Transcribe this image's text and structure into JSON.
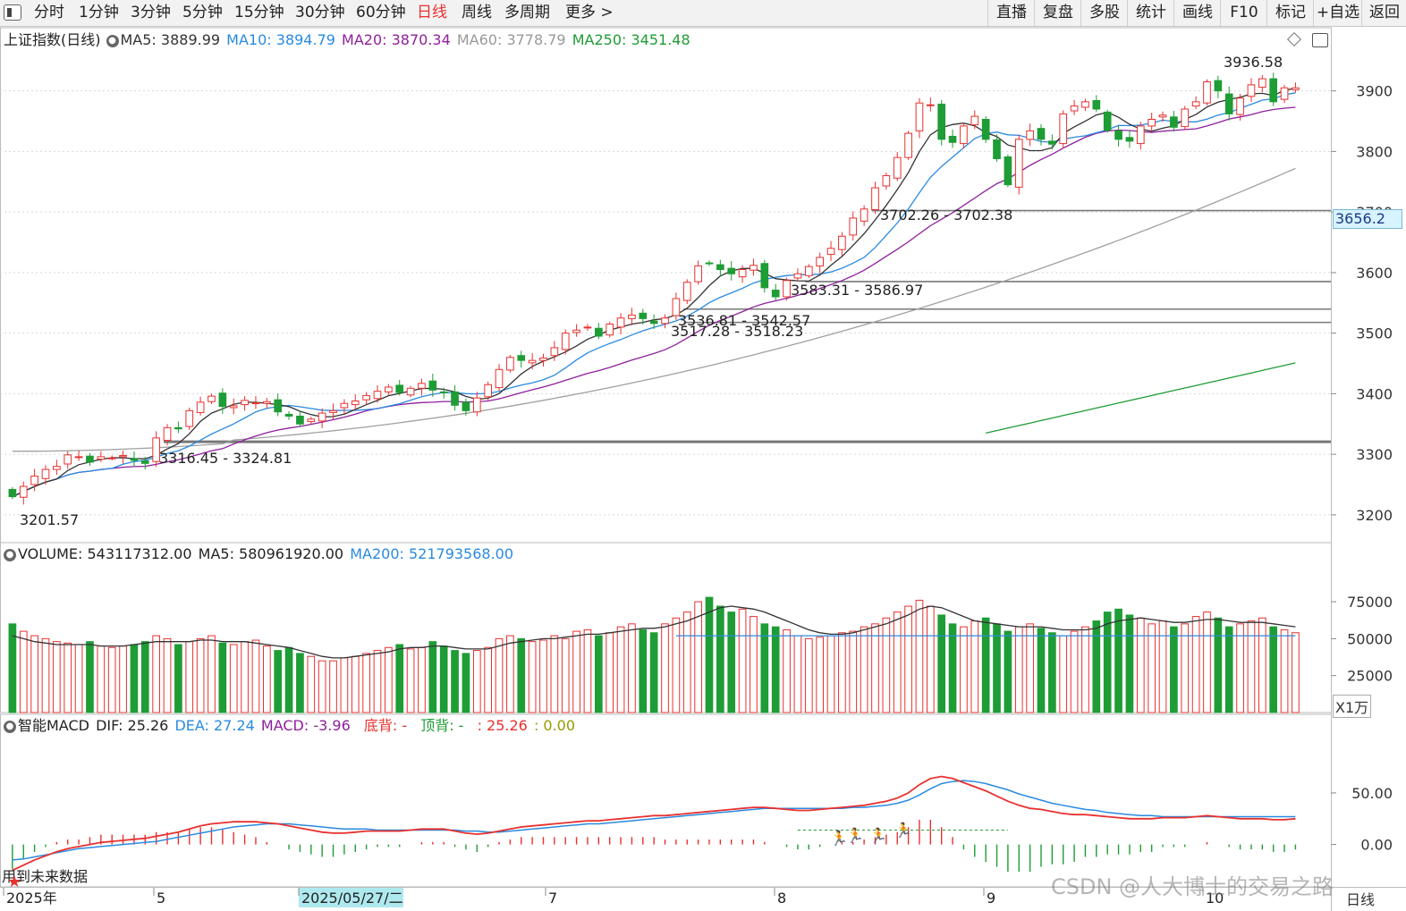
{
  "toolbar": {
    "periods": [
      "分时",
      "1分钟",
      "3分钟",
      "5分钟",
      "15分钟",
      "30分钟",
      "60分钟",
      "日线",
      "周线",
      "多周期",
      "更多 >"
    ],
    "active_period": "日线",
    "right_buttons": [
      "直播",
      "复盘",
      "多股",
      "统计",
      "画线",
      "F10",
      "标记",
      "+自选",
      "返回"
    ]
  },
  "main_info": {
    "title": "上证指数(日线)",
    "ma5": "MA5: 3889.99",
    "ma10": "MA10: 3894.79",
    "ma20": "MA20: 3870.34",
    "ma60": "MA60: 3778.79",
    "ma250": "MA250: 3451.48"
  },
  "volume_info": {
    "label": "VOLUME: 543117312.00",
    "ma5": "MA5: 580961920.00",
    "ma200": "MA200: 521793568.00"
  },
  "macd_info": {
    "label": "智能MACD",
    "dif": "DIF: 25.26",
    "dea": "DEA: 27.24",
    "macd": "MACD: -3.96",
    "bottom": "底背: -",
    "top": "顶背: -",
    "extra": ": 25.26",
    "zero": ": 0.00"
  },
  "annotations": {
    "high": "3936.58",
    "low": "3201.57",
    "gap1": "3702.26 - 3702.38",
    "gap2": "3583.31 - 3586.97",
    "gap3": "3536.81 - 3542.57",
    "gap4": "3517.28 - 3518.23",
    "gap5": "3316.45 - 3324.81",
    "future_note": "用到未来数据"
  },
  "price_tag": "3656.2",
  "volume_unit": "X1万",
  "bottom_right_label": "日线",
  "x_axis": {
    "labels": [
      "2025年",
      "5",
      "2025/05/27/二",
      "7",
      "8",
      "9",
      "10"
    ]
  },
  "watermark": "CSDN @人大博士的交易之路",
  "colors": {
    "up": "#e8312f",
    "down": "#1e9c35",
    "ma5": "#333333",
    "ma10": "#2a8ae0",
    "ma20": "#8e1f9c",
    "ma60": "#a0a0a0",
    "ma250": "#1e9c35",
    "dif": "#e8312f",
    "dea": "#2a8ae0"
  },
  "chart_data": {
    "type": "candlestick",
    "price_axis": {
      "ylim": [
        3160,
        3960
      ],
      "ticks": [
        "3900",
        "3800",
        "3700",
        "3600",
        "3500",
        "3400",
        "3300",
        "3200"
      ]
    },
    "volume_axis": {
      "ticks": [
        "75000",
        "50000",
        "25000"
      ]
    },
    "macd_axis": {
      "ticks": [
        "50.00",
        "0.00"
      ]
    },
    "support_levels": [
      3702.32,
      3585.14,
      3539.69,
      3517.76,
      3320.63
    ],
    "close": [
      3230,
      3247,
      3264,
      3275,
      3280,
      3299,
      3296,
      3287,
      3296,
      3294,
      3298,
      3290,
      3285,
      3327,
      3344,
      3342,
      3372,
      3386,
      3396,
      3379,
      3380,
      3389,
      3385,
      3387,
      3370,
      3363,
      3350,
      3358,
      3368,
      3372,
      3384,
      3388,
      3397,
      3404,
      3411,
      3402,
      3409,
      3417,
      3406,
      3402,
      3381,
      3372,
      3393,
      3415,
      3440,
      3460,
      3455,
      3455,
      3459,
      3476,
      3500,
      3505,
      3510,
      3495,
      3515,
      3525,
      3530,
      3524,
      3516,
      3525,
      3557,
      3584,
      3611,
      3615,
      3605,
      3598,
      3605,
      3612,
      3575,
      3560,
      3587,
      3598,
      3610,
      3625,
      3640,
      3660,
      3690,
      3705,
      3740,
      3760,
      3790,
      3830,
      3880,
      3877,
      3820,
      3815,
      3842,
      3858,
      3820,
      3788,
      3745,
      3820,
      3834,
      3820,
      3812,
      3862,
      3875,
      3882,
      3870,
      3835,
      3820,
      3817,
      3842,
      3853,
      3860,
      3840,
      3870,
      3882,
      3915,
      3900,
      3862,
      3888,
      3910,
      3920,
      3882,
      3905,
      3905
    ],
    "volume": [
      60,
      55,
      52,
      50,
      48,
      47,
      46,
      48,
      45,
      44,
      45,
      46,
      48,
      52,
      50,
      46,
      48,
      50,
      52,
      47,
      46,
      48,
      49,
      45,
      42,
      44,
      40,
      38,
      35,
      35,
      37,
      38,
      40,
      42,
      44,
      46,
      43,
      44,
      48,
      45,
      42,
      40,
      42,
      44,
      50,
      52,
      50,
      48,
      49,
      52,
      50,
      55,
      56,
      52,
      54,
      58,
      60,
      56,
      54,
      60,
      64,
      68,
      75,
      78,
      72,
      68,
      70,
      65,
      60,
      58,
      56,
      52,
      50,
      51,
      52,
      54,
      55,
      58,
      60,
      64,
      68,
      72,
      76,
      72,
      66,
      60,
      58,
      62,
      64,
      60,
      55,
      58,
      60,
      57,
      54,
      52,
      55,
      58,
      62,
      68,
      70,
      66,
      64,
      60,
      62,
      58,
      60,
      65,
      68,
      64,
      58,
      60,
      62,
      64,
      58,
      56,
      54
    ],
    "volume_ma5": [
      52,
      50,
      48,
      47,
      46,
      46,
      46,
      46,
      45,
      45,
      45,
      46,
      47,
      48,
      48,
      48,
      48,
      49,
      49,
      48,
      48,
      48,
      47,
      46,
      45,
      44,
      42,
      40,
      38,
      37,
      37,
      38,
      39,
      40,
      41,
      43,
      44,
      44,
      45,
      45,
      44,
      43,
      43,
      43,
      45,
      47,
      48,
      49,
      50,
      50,
      51,
      52,
      53,
      53,
      54,
      55,
      56,
      57,
      57,
      58,
      60,
      62,
      65,
      68,
      71,
      72,
      71,
      70,
      68,
      65,
      62,
      59,
      56,
      54,
      53,
      53,
      54,
      56,
      58,
      60,
      63,
      66,
      70,
      72,
      71,
      68,
      65,
      62,
      61,
      60,
      59,
      58,
      58,
      58,
      57,
      56,
      56,
      56,
      57,
      60,
      62,
      63,
      64,
      63,
      62,
      61,
      61,
      62,
      63,
      63,
      62,
      61,
      61,
      61,
      60,
      59,
      58
    ],
    "dif": [
      -25,
      -20,
      -15,
      -11,
      -7,
      -4,
      -2,
      0,
      2,
      3,
      4,
      5,
      6,
      8,
      10,
      12,
      15,
      18,
      20,
      21,
      22,
      22,
      22,
      21,
      20,
      18,
      16,
      14,
      12,
      11,
      11,
      12,
      13,
      13,
      13,
      13,
      14,
      15,
      15,
      15,
      13,
      11,
      10,
      11,
      13,
      15,
      17,
      18,
      19,
      20,
      21,
      22,
      23,
      23,
      24,
      25,
      26,
      27,
      28,
      28,
      29,
      30,
      31,
      32,
      33,
      34,
      35,
      36,
      36,
      35,
      34,
      33,
      33,
      34,
      35,
      36,
      37,
      38,
      40,
      42,
      45,
      50,
      58,
      64,
      66,
      64,
      60,
      56,
      52,
      47,
      42,
      38,
      35,
      34,
      32,
      30,
      29,
      29,
      28,
      27,
      26,
      25,
      25,
      25,
      26,
      26,
      26,
      27,
      28,
      27,
      26,
      25,
      25,
      25,
      24,
      24,
      25
    ],
    "dea": [
      -15,
      -14,
      -12,
      -10,
      -8,
      -6,
      -4,
      -3,
      -2,
      -1,
      0,
      1,
      2,
      3,
      5,
      7,
      9,
      11,
      13,
      15,
      17,
      18,
      19,
      20,
      20,
      20,
      19,
      18,
      17,
      16,
      15,
      15,
      15,
      14,
      14,
      14,
      14,
      14,
      14,
      14,
      14,
      13,
      13,
      12,
      12,
      13,
      14,
      15,
      16,
      17,
      18,
      19,
      20,
      20,
      21,
      22,
      23,
      24,
      25,
      26,
      27,
      28,
      29,
      30,
      31,
      32,
      33,
      34,
      35,
      35,
      35,
      35,
      35,
      35,
      35,
      35,
      36,
      36,
      37,
      38,
      40,
      43,
      48,
      54,
      59,
      61,
      62,
      61,
      59,
      56,
      53,
      49,
      46,
      43,
      40,
      38,
      36,
      34,
      33,
      31,
      30,
      29,
      28,
      28,
      27,
      27,
      27,
      27,
      27,
      27,
      27,
      27,
      27,
      27,
      27,
      27,
      27
    ]
  }
}
